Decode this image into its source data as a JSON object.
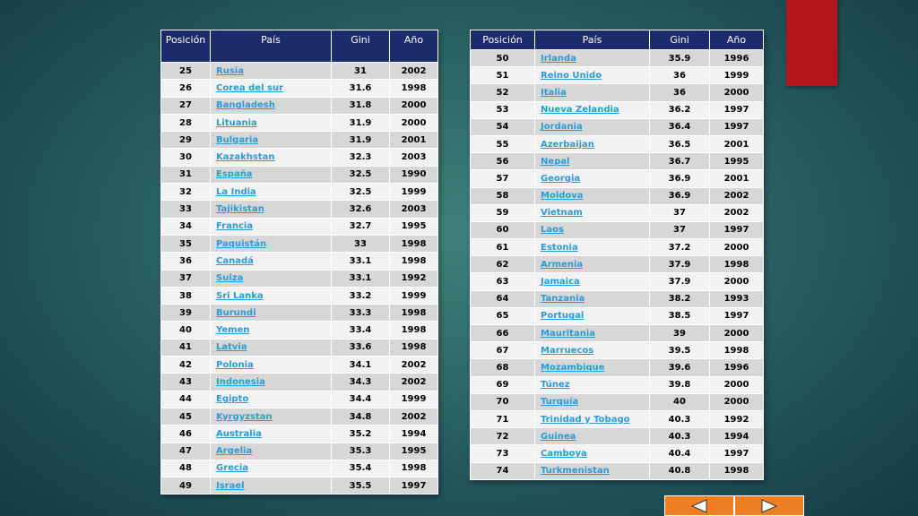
{
  "left_table": {
    "headers": [
      "Posición",
      "País",
      "Gini",
      "Año"
    ],
    "rows": [
      {
        "pos": "25",
        "country": "Rusia",
        "gini": "31",
        "year": "2002"
      },
      {
        "pos": "26",
        "country": "Corea del sur",
        "gini": "31.6",
        "year": "1998"
      },
      {
        "pos": "27",
        "country": "Bangladesh",
        "gini": "31.8",
        "year": "2000"
      },
      {
        "pos": "28",
        "country": "Lituania",
        "gini": "31.9",
        "year": "2000"
      },
      {
        "pos": "29",
        "country": "Bulgaria",
        "gini": "31.9",
        "year": "2001"
      },
      {
        "pos": "30",
        "country": "Kazakhstan",
        "gini": "32.3",
        "year": "2003"
      },
      {
        "pos": "31",
        "country": "España",
        "gini": "32.5",
        "year": "1990"
      },
      {
        "pos": "32",
        "country": "La India",
        "gini": "32.5",
        "year": "1999"
      },
      {
        "pos": "33",
        "country": "Tajikistan",
        "gini": "32.6",
        "year": "2003"
      },
      {
        "pos": "34",
        "country": "Francia",
        "gini": "32.7",
        "year": "1995"
      },
      {
        "pos": "35",
        "country": "Paquistán",
        "gini": "33",
        "year": "1998"
      },
      {
        "pos": "36",
        "country": "Canadá",
        "gini": "33.1",
        "year": "1998"
      },
      {
        "pos": "37",
        "country": "Suiza",
        "gini": "33.1",
        "year": "1992"
      },
      {
        "pos": "38",
        "country": "Sri Lanka",
        "gini": "33.2",
        "year": "1999"
      },
      {
        "pos": "39",
        "country": "Burundi",
        "gini": "33.3",
        "year": "1998"
      },
      {
        "pos": "40",
        "country": "Yemen",
        "gini": "33.4",
        "year": "1998"
      },
      {
        "pos": "41",
        "country": "Latvia",
        "gini": "33.6",
        "year": "1998"
      },
      {
        "pos": "42",
        "country": "Polonia",
        "gini": "34.1",
        "year": "2002"
      },
      {
        "pos": "43",
        "country": "Indonesia",
        "gini": "34.3",
        "year": "2002"
      },
      {
        "pos": "44",
        "country": "Egipto",
        "gini": "34.4",
        "year": "1999"
      },
      {
        "pos": "45",
        "country": "Kyrgyzstan",
        "gini": "34.8",
        "year": "2002"
      },
      {
        "pos": "46",
        "country": "Australia",
        "gini": "35.2",
        "year": "1994"
      },
      {
        "pos": "47",
        "country": "Argelia",
        "gini": "35.3",
        "year": "1995"
      },
      {
        "pos": "48",
        "country": "Grecia",
        "gini": "35.4",
        "year": "1998"
      },
      {
        "pos": "49",
        "country": "Israel",
        "gini": "35.5",
        "year": "1997"
      }
    ]
  },
  "right_table": {
    "headers": [
      "Posición",
      "País",
      "Gini",
      "Año"
    ],
    "rows": [
      {
        "pos": "50",
        "country": "Irlanda",
        "gini": "35.9",
        "year": "1996"
      },
      {
        "pos": "51",
        "country": "Reino Unido",
        "gini": "36",
        "year": "1999"
      },
      {
        "pos": "52",
        "country": "Italia",
        "gini": "36",
        "year": "2000"
      },
      {
        "pos": "53",
        "country": "Nueva Zelandia",
        "gini": "36.2",
        "year": "1997"
      },
      {
        "pos": "54",
        "country": "Jordania",
        "gini": "36.4",
        "year": "1997"
      },
      {
        "pos": "55",
        "country": "Azerbaijan",
        "gini": "36.5",
        "year": "2001"
      },
      {
        "pos": "56",
        "country": "Nepal",
        "gini": "36.7",
        "year": "1995"
      },
      {
        "pos": "57",
        "country": "Georgia",
        "gini": "36.9",
        "year": "2001"
      },
      {
        "pos": "58",
        "country": "Moldova",
        "gini": "36.9",
        "year": "2002"
      },
      {
        "pos": "59",
        "country": "Vietnam",
        "gini": "37",
        "year": "2002"
      },
      {
        "pos": "60",
        "country": "Laos",
        "gini": "37",
        "year": "1997"
      },
      {
        "pos": "61",
        "country": "Estonia",
        "gini": "37.2",
        "year": "2000"
      },
      {
        "pos": "62",
        "country": "Armenia",
        "gini": "37.9",
        "year": "1998"
      },
      {
        "pos": "63",
        "country": "Jamaica",
        "gini": "37.9",
        "year": "2000"
      },
      {
        "pos": "64",
        "country": "Tanzania",
        "gini": "38.2",
        "year": "1993"
      },
      {
        "pos": "65",
        "country": "Portugal",
        "gini": "38.5",
        "year": "1997"
      },
      {
        "pos": "66",
        "country": "Mauritania",
        "gini": "39",
        "year": "2000"
      },
      {
        "pos": "67",
        "country": "Marruecos",
        "gini": "39.5",
        "year": "1998"
      },
      {
        "pos": "68",
        "country": "Mozambique",
        "gini": "39.6",
        "year": "1996"
      },
      {
        "pos": "69",
        "country": "Túnez",
        "gini": "39.8",
        "year": "2000"
      },
      {
        "pos": "70",
        "country": "Turquía",
        "gini": "40",
        "year": "2000"
      },
      {
        "pos": "71",
        "country": "Trinidad y Tobago",
        "gini": "40.3",
        "year": "1992"
      },
      {
        "pos": "72",
        "country": "Guinea",
        "gini": "40.3",
        "year": "1994"
      },
      {
        "pos": "73",
        "country": "Camboya",
        "gini": "40.4",
        "year": "1997"
      },
      {
        "pos": "74",
        "country": "Turkmenistan",
        "gini": "40.8",
        "year": "1998"
      }
    ]
  },
  "nav": {
    "prev_icon": "arrow-left-icon",
    "next_icon": "arrow-right-icon"
  },
  "colors": {
    "header_bg": "#1c2b6b",
    "link": "#2b9bd4",
    "nav_button": "#f07f22",
    "accent_block": "#b3161a"
  }
}
